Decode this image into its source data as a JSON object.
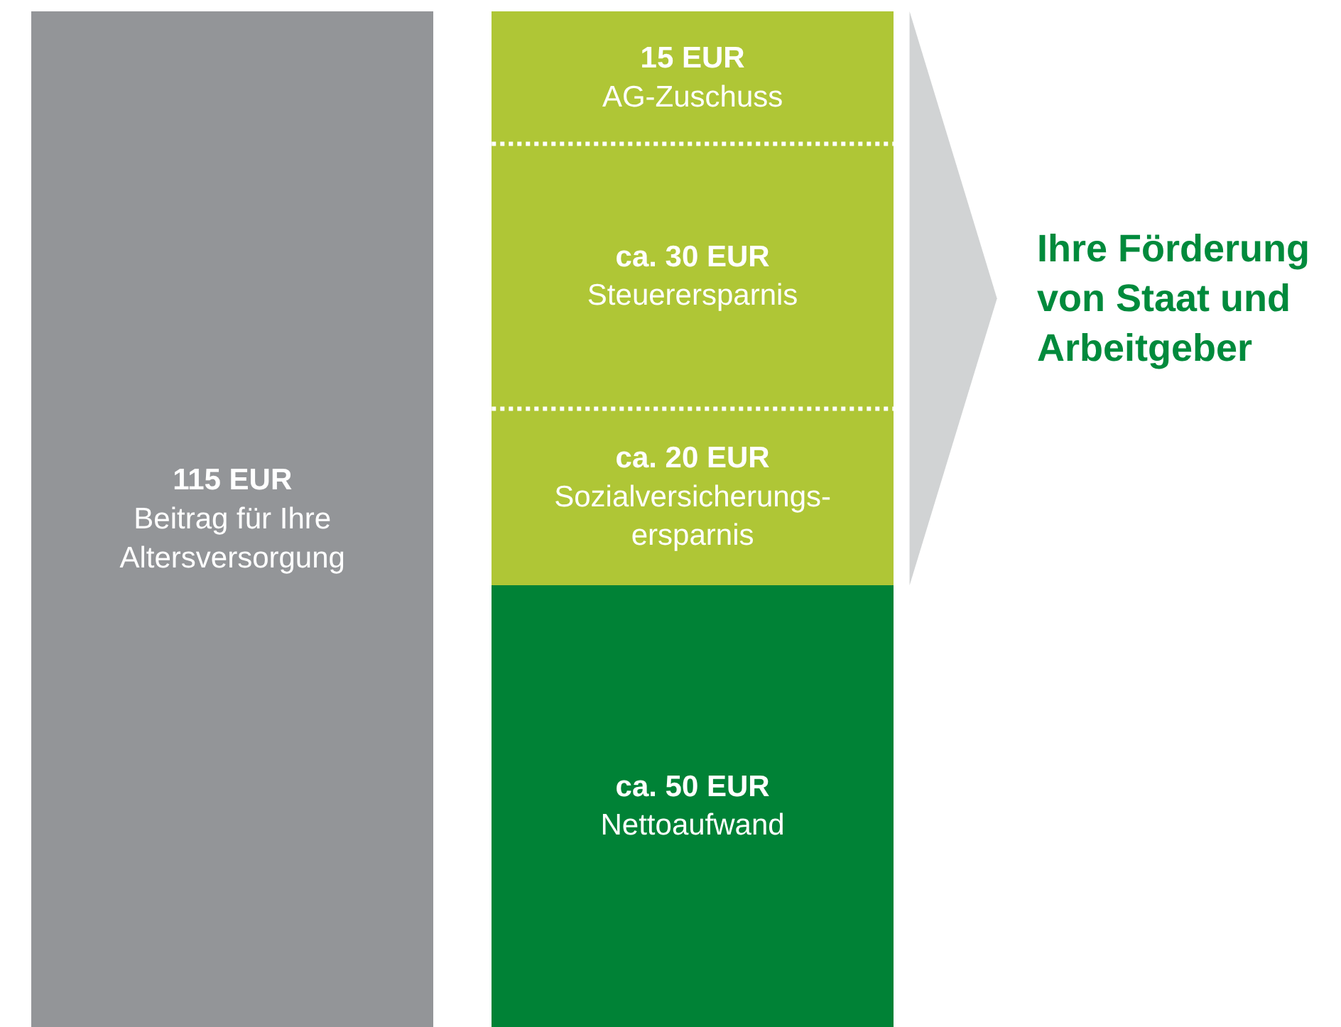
{
  "chart_data": {
    "type": "bar",
    "stacked": true,
    "categories": [
      null,
      null
    ],
    "series": [
      {
        "name": "Beitrag für Ihre Altersversorgung",
        "color": "#939598",
        "values": [
          115,
          null
        ],
        "value_labels": [
          "115 EUR",
          null
        ]
      },
      {
        "name": "Nettoaufwand",
        "color": "#008236",
        "values": [
          null,
          50
        ],
        "value_labels": [
          null,
          "ca. 50 EUR"
        ]
      },
      {
        "name": "Sozialversicherungs-ersparnis",
        "color": "#afc636",
        "values": [
          null,
          20
        ],
        "value_labels": [
          null,
          "ca. 20 EUR"
        ]
      },
      {
        "name": "Steuerersparnis",
        "color": "#afc636",
        "values": [
          null,
          30
        ],
        "value_labels": [
          null,
          "ca. 30 EUR"
        ]
      },
      {
        "name": "AG-Zuschuss",
        "color": "#afc636",
        "values": [
          null,
          15
        ],
        "value_labels": [
          null,
          "15 EUR"
        ]
      }
    ],
    "annotations": [
      "Ihre Förderung von Staat und Arbeitgeber"
    ],
    "legend": false
  }
}
